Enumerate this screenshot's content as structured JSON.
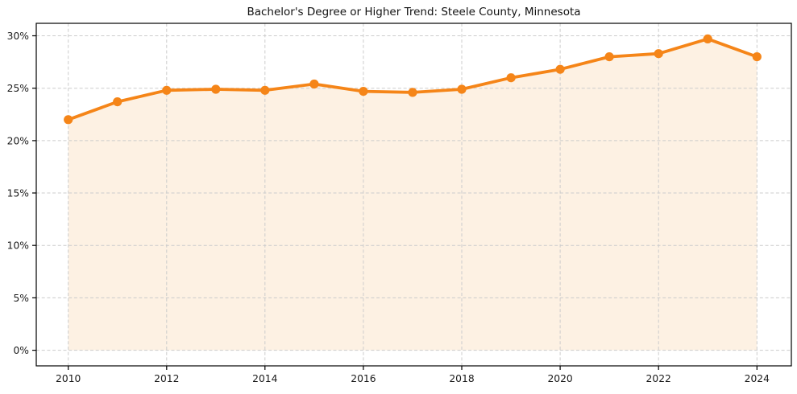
{
  "chart_data": {
    "type": "line",
    "title": "Bachelor's Degree or Higher Trend: Steele County, Minnesota",
    "x": [
      2010,
      2011,
      2012,
      2013,
      2014,
      2015,
      2016,
      2017,
      2018,
      2019,
      2020,
      2021,
      2022,
      2023,
      2024
    ],
    "series": [
      {
        "name": "Bachelor's Degree or Higher",
        "values": [
          22.0,
          23.7,
          24.8,
          24.9,
          24.8,
          25.4,
          24.7,
          24.6,
          24.9,
          26.0,
          26.8,
          28.0,
          28.3,
          29.7,
          28.0
        ]
      }
    ],
    "x_ticks": [
      2010,
      2012,
      2014,
      2016,
      2018,
      2020,
      2022,
      2024
    ],
    "x_tick_labels": [
      "2010",
      "2012",
      "2014",
      "2016",
      "2018",
      "2020",
      "2022",
      "2024"
    ],
    "y_ticks": [
      0,
      5,
      10,
      15,
      20,
      25,
      30
    ],
    "y_tick_labels": [
      "0%",
      "5%",
      "10%",
      "15%",
      "20%",
      "25%",
      "30%"
    ],
    "xlim": [
      2009.35,
      2024.7
    ],
    "ylim": [
      -1.49,
      31.19
    ],
    "xlabel": "",
    "ylabel": "",
    "grid": true,
    "grid_style": "dashed",
    "legend_position": "none",
    "area_fill": true,
    "fill_baseline": 0,
    "marker": "circle",
    "colors": {
      "line": "#f58518",
      "marker": "#f58518",
      "fill": "#fdf1e3",
      "grid": "#cccccc",
      "axis": "#000000",
      "tick_label": "#1a1a1a",
      "title": "#111111",
      "background": "#ffffff"
    }
  }
}
